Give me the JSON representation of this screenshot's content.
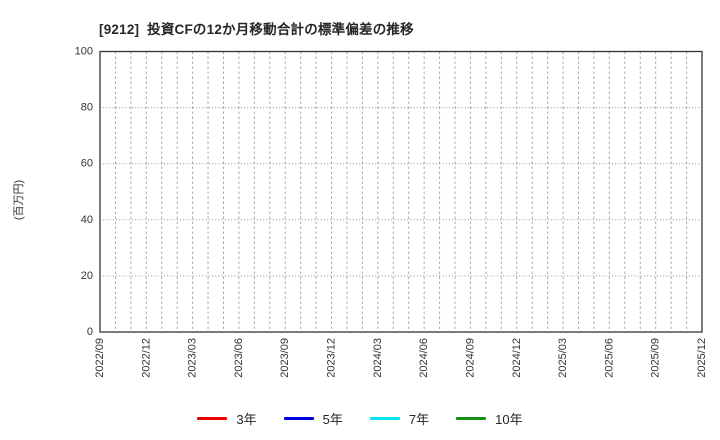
{
  "header": {
    "title": "[9212]  投資CFの12か月移動合計の標準偏差の推移"
  },
  "y_axis": {
    "label": "(百万円)",
    "tick_labels": [
      "0",
      "20",
      "40",
      "60",
      "80",
      "100"
    ]
  },
  "x_axis": {
    "tick_labels": [
      "2022/09",
      "2022/12",
      "2023/03",
      "2023/06",
      "2023/09",
      "2023/12",
      "2024/03",
      "2024/06",
      "2024/09",
      "2024/12",
      "2025/03",
      "2025/06",
      "2025/09",
      "2025/12"
    ]
  },
  "legend": {
    "items": [
      {
        "label": "3年",
        "color": "#ee0000"
      },
      {
        "label": "5年",
        "color": "#0000dd"
      },
      {
        "label": "7年",
        "color": "#00e5ee"
      },
      {
        "label": "10年",
        "color": "#159015"
      }
    ]
  },
  "chart_data": {
    "type": "line",
    "title": "[9212]  投資CFの12か月移動合計の標準偏差の推移",
    "xlabel": "",
    "ylabel": "(百万円)",
    "ylim": [
      0,
      100
    ],
    "y_ticks": [
      0,
      20,
      40,
      60,
      80,
      100
    ],
    "x_range": [
      "2022/09",
      "2025/12"
    ],
    "x_tick_labels": [
      "2022/09",
      "2022/12",
      "2023/03",
      "2023/06",
      "2023/09",
      "2023/12",
      "2024/03",
      "2024/06",
      "2024/09",
      "2024/12",
      "2025/03",
      "2025/06",
      "2025/09",
      "2025/12"
    ],
    "months_per_tick": 3,
    "total_month_intervals": 39,
    "grid": true,
    "legend_position": "bottom",
    "series": [
      {
        "name": "3年",
        "color": "#ee0000",
        "values": []
      },
      {
        "name": "5年",
        "color": "#0000dd",
        "values": []
      },
      {
        "name": "7年",
        "color": "#00e5ee",
        "values": []
      },
      {
        "name": "10年",
        "color": "#159015",
        "values": []
      }
    ]
  },
  "colors": {
    "spine": "#333333",
    "grid_vertical": "#a8a8a8",
    "grid_horizontal": "#8c8c8c",
    "background": "#ffffff"
  }
}
